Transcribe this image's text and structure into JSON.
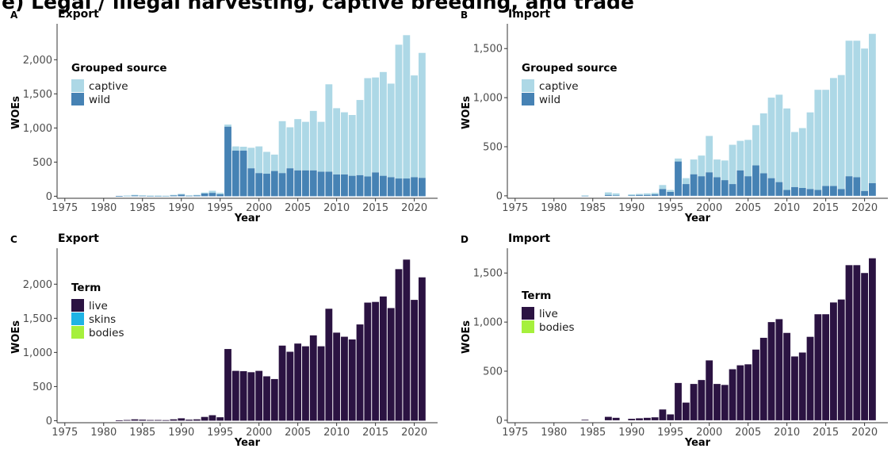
{
  "header": {
    "title": "e)  Legal / illegal harvesting, captive breeding, and trade"
  },
  "colors": {
    "captive": "#add8e6",
    "wild": "#4682b4",
    "live": "#2b1342",
    "skins": "#1fb3e5",
    "bodies": "#a6f03c",
    "axis": "#333333",
    "text": "#4d4d4d"
  },
  "chart_data": [
    {
      "letter": "A",
      "title": "Export",
      "type": "bar",
      "stacked": true,
      "xlabel": "Year",
      "ylabel": "WOEs",
      "xlim": [
        1974,
        2023
      ],
      "ylim": [
        -30,
        2480
      ],
      "xticks": [
        "1975",
        "1980",
        "1985",
        "1990",
        "1995",
        "2000",
        "2005",
        "2010",
        "2015",
        "2020"
      ],
      "yticks": [
        "0",
        "500",
        "1,000",
        "1,500",
        "2,000"
      ],
      "ytick_values": [
        0,
        500,
        1000,
        1500,
        2000
      ],
      "legend": {
        "title": "Grouped source",
        "position": "left",
        "entries": [
          "captive",
          "wild"
        ]
      },
      "categories": [
        1982,
        1983,
        1984,
        1985,
        1986,
        1987,
        1988,
        1989,
        1990,
        1991,
        1992,
        1993,
        1994,
        1995,
        1996,
        1997,
        1998,
        1999,
        2000,
        2001,
        2002,
        2003,
        2004,
        2005,
        2006,
        2007,
        2008,
        2009,
        2010,
        2011,
        2012,
        2013,
        2014,
        2015,
        2016,
        2017,
        2018,
        2019,
        2020,
        2021
      ],
      "series": [
        {
          "name": "wild",
          "values": [
            5,
            8,
            15,
            10,
            5,
            5,
            5,
            15,
            25,
            10,
            15,
            40,
            50,
            30,
            1020,
            670,
            670,
            410,
            340,
            330,
            370,
            340,
            410,
            380,
            380,
            380,
            360,
            360,
            320,
            320,
            300,
            310,
            290,
            350,
            300,
            280,
            260,
            260,
            280,
            270
          ]
        },
        {
          "name": "captive",
          "values": [
            0,
            2,
            5,
            5,
            5,
            5,
            3,
            5,
            10,
            5,
            5,
            15,
            30,
            20,
            30,
            60,
            55,
            300,
            390,
            320,
            240,
            760,
            600,
            750,
            710,
            870,
            730,
            1280,
            970,
            910,
            890,
            1100,
            1440,
            1390,
            1520,
            1370,
            1960,
            2100,
            1490,
            1830
          ]
        }
      ]
    },
    {
      "letter": "B",
      "title": "Import",
      "type": "bar",
      "stacked": true,
      "xlabel": "Year",
      "ylabel": "WOEs",
      "xlim": [
        1974,
        2023
      ],
      "ylim": [
        -25,
        1720
      ],
      "xticks": [
        "1975",
        "1980",
        "1985",
        "1990",
        "1995",
        "2000",
        "2005",
        "2010",
        "2015",
        "2020"
      ],
      "yticks": [
        "0",
        "500",
        "1,000",
        "1,500"
      ],
      "ytick_values": [
        0,
        500,
        1000,
        1500
      ],
      "legend": {
        "title": "Grouped source",
        "position": "left",
        "entries": [
          "captive",
          "wild"
        ]
      },
      "categories": [
        1984,
        1987,
        1988,
        1990,
        1991,
        1992,
        1993,
        1994,
        1995,
        1996,
        1997,
        1998,
        1999,
        2000,
        2001,
        2002,
        2003,
        2004,
        2005,
        2006,
        2007,
        2008,
        2009,
        2010,
        2011,
        2012,
        2013,
        2014,
        2015,
        2016,
        2017,
        2018,
        2019,
        2020,
        2021
      ],
      "series": [
        {
          "name": "wild",
          "values": [
            2,
            10,
            5,
            5,
            10,
            10,
            15,
            70,
            40,
            350,
            120,
            220,
            200,
            240,
            190,
            160,
            120,
            260,
            200,
            310,
            230,
            180,
            140,
            60,
            90,
            80,
            70,
            60,
            100,
            100,
            70,
            200,
            190,
            50,
            130
          ]
        },
        {
          "name": "captive",
          "values": [
            3,
            25,
            20,
            10,
            10,
            15,
            15,
            40,
            20,
            30,
            60,
            150,
            210,
            370,
            180,
            200,
            400,
            300,
            370,
            410,
            610,
            820,
            890,
            830,
            560,
            610,
            780,
            1020,
            980,
            1100,
            1160,
            1380,
            1390,
            1450,
            1520
          ]
        }
      ]
    },
    {
      "letter": "C",
      "title": "Export",
      "type": "bar",
      "stacked": true,
      "xlabel": "Year",
      "ylabel": "WOEs",
      "xlim": [
        1974,
        2023
      ],
      "ylim": [
        -30,
        2480
      ],
      "xticks": [
        "1975",
        "1980",
        "1985",
        "1990",
        "1995",
        "2000",
        "2005",
        "2010",
        "2015",
        "2020"
      ],
      "yticks": [
        "0",
        "500",
        "1,000",
        "1,500",
        "2,000"
      ],
      "ytick_values": [
        0,
        500,
        1000,
        1500,
        2000
      ],
      "legend": {
        "title": "Term",
        "position": "left",
        "entries": [
          "live",
          "skins",
          "bodies"
        ]
      },
      "categories": [
        1982,
        1983,
        1984,
        1985,
        1986,
        1987,
        1988,
        1989,
        1990,
        1991,
        1992,
        1993,
        1994,
        1995,
        1996,
        1997,
        1998,
        1999,
        2000,
        2001,
        2002,
        2003,
        2004,
        2005,
        2006,
        2007,
        2008,
        2009,
        2010,
        2011,
        2012,
        2013,
        2014,
        2015,
        2016,
        2017,
        2018,
        2019,
        2020,
        2021
      ],
      "series": [
        {
          "name": "live",
          "values": [
            5,
            10,
            20,
            15,
            10,
            10,
            8,
            20,
            35,
            15,
            20,
            55,
            80,
            50,
            1050,
            730,
            725,
            710,
            730,
            650,
            610,
            1100,
            1010,
            1130,
            1090,
            1250,
            1090,
            1640,
            1290,
            1230,
            1190,
            1410,
            1730,
            1740,
            1820,
            1650,
            2220,
            2360,
            1770,
            2100
          ]
        }
      ]
    },
    {
      "letter": "D",
      "title": "Import",
      "type": "bar",
      "stacked": true,
      "xlabel": "Year",
      "ylabel": "WOEs",
      "xlim": [
        1974,
        2023
      ],
      "ylim": [
        -25,
        1720
      ],
      "xticks": [
        "1975",
        "1980",
        "1985",
        "1990",
        "1995",
        "2000",
        "2005",
        "2010",
        "2015",
        "2020"
      ],
      "yticks": [
        "0",
        "500",
        "1,000",
        "1,500"
      ],
      "ytick_values": [
        0,
        500,
        1000,
        1500
      ],
      "legend": {
        "title": "Term",
        "position": "left",
        "entries": [
          "live",
          "bodies"
        ]
      },
      "categories": [
        1984,
        1987,
        1988,
        1990,
        1991,
        1992,
        1993,
        1994,
        1995,
        1996,
        1997,
        1998,
        1999,
        2000,
        2001,
        2002,
        2003,
        2004,
        2005,
        2006,
        2007,
        2008,
        2009,
        2010,
        2011,
        2012,
        2013,
        2014,
        2015,
        2016,
        2017,
        2018,
        2019,
        2020,
        2021
      ],
      "series": [
        {
          "name": "live",
          "values": [
            5,
            35,
            25,
            15,
            20,
            25,
            30,
            110,
            60,
            380,
            180,
            370,
            410,
            610,
            370,
            360,
            520,
            560,
            570,
            720,
            840,
            1000,
            1030,
            890,
            650,
            690,
            850,
            1080,
            1080,
            1200,
            1230,
            1580,
            1580,
            1500,
            1650
          ]
        }
      ]
    }
  ]
}
